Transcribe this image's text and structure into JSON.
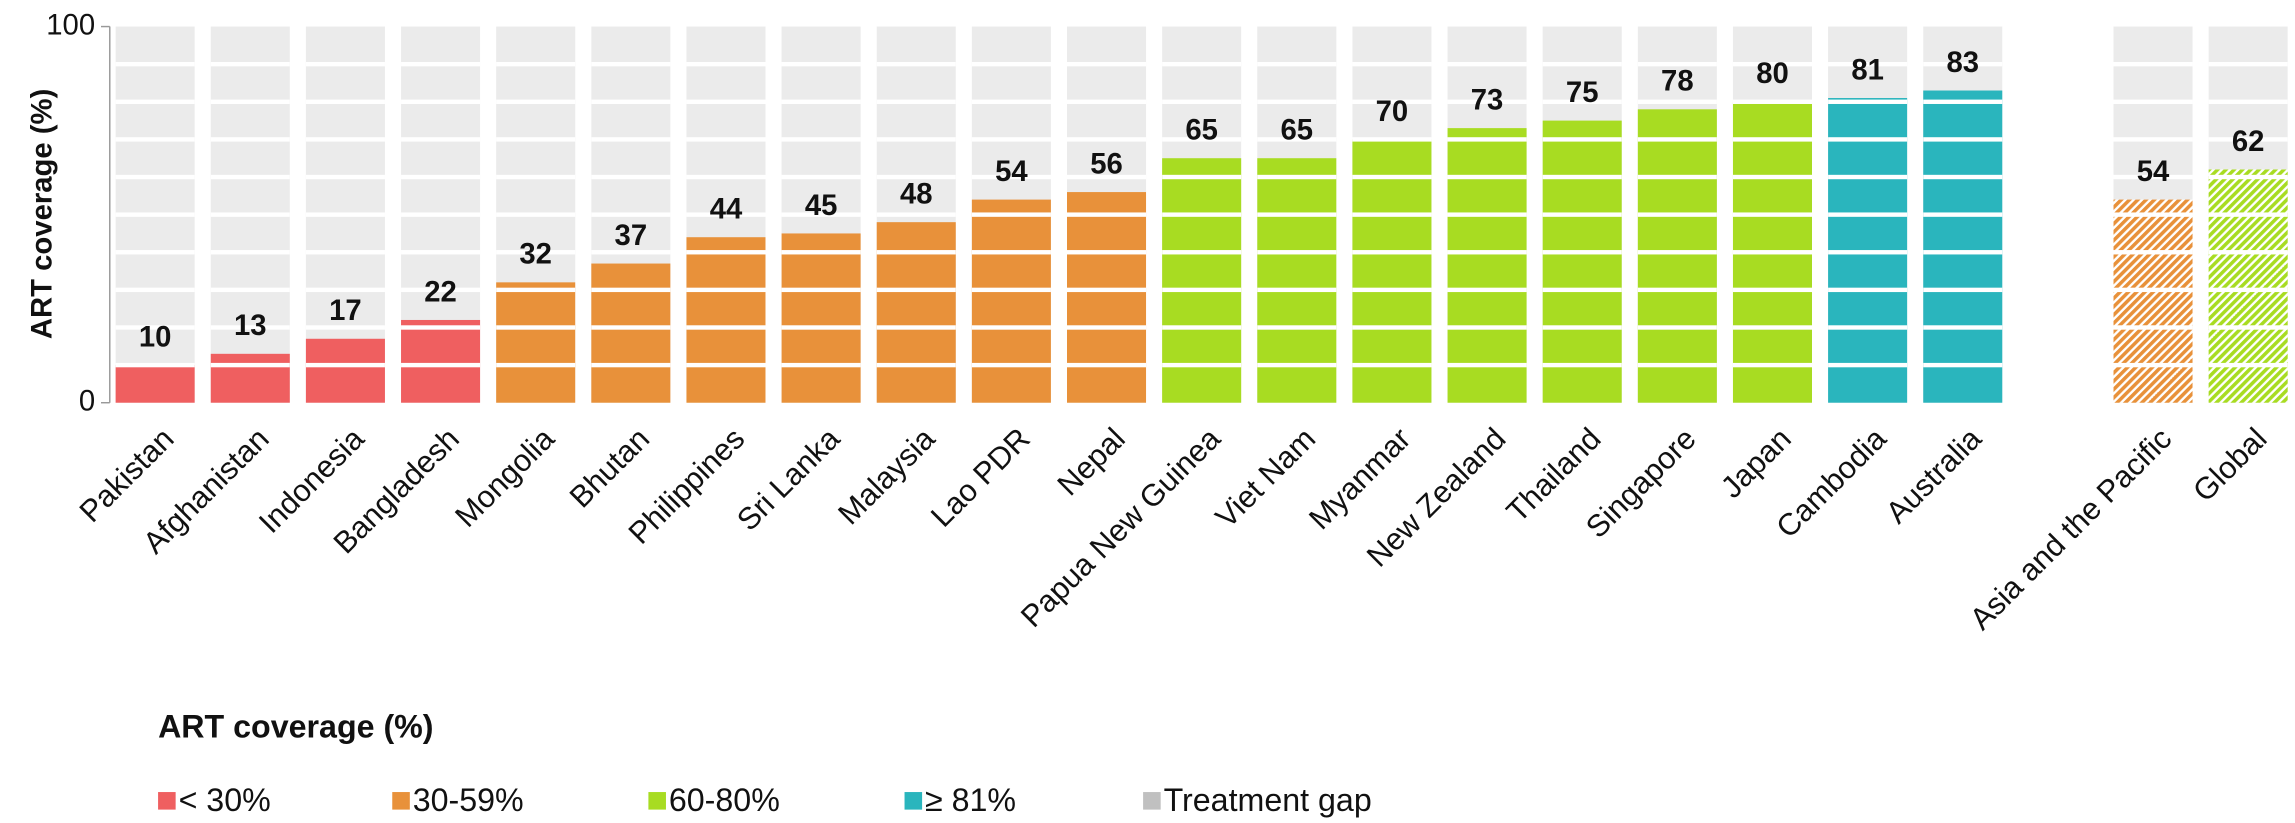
{
  "chart_data": {
    "type": "bar",
    "y_label": "ART coverage (%)",
    "categories": [
      "Pakistan",
      "Afghanistan",
      "Indonesia",
      "Bangladesh",
      "Mongolia",
      "Bhutan",
      "Philippines",
      "Sri Lanka",
      "Malaysia",
      "Lao PDR",
      "Nepal",
      "Papua New Guinea",
      "Viet Nam",
      "Myanmar",
      "New Zealand",
      "Thailand",
      "Singapore",
      "Japan",
      "Cambodia",
      "Australia",
      "Asia and the Pacific",
      "Global"
    ],
    "values": [
      10,
      13,
      17,
      22,
      32,
      37,
      44,
      45,
      48,
      54,
      56,
      65,
      65,
      70,
      73,
      75,
      78,
      80,
      81,
      83,
      54,
      62
    ],
    "colors": [
      "#ef5f60",
      "#ef5f60",
      "#ef5f60",
      "#ef5f60",
      "#e8913a",
      "#e8913a",
      "#e8913a",
      "#e8913a",
      "#e8913a",
      "#e8913a",
      "#e8913a",
      "#a8dc22",
      "#a8dc22",
      "#a8dc22",
      "#a8dc22",
      "#a8dc22",
      "#a8dc22",
      "#a8dc22",
      "#2ab5bd",
      "#2ab5bd",
      "#e8913a",
      "#a8dc22"
    ],
    "hatched": [
      false,
      false,
      false,
      false,
      false,
      false,
      false,
      false,
      false,
      false,
      false,
      false,
      false,
      false,
      false,
      false,
      false,
      false,
      false,
      false,
      true,
      true
    ],
    "gap_color": "#ebebeb",
    "ylim": [
      0,
      100
    ],
    "yticks": [
      0,
      100
    ],
    "legend_title": "ART coverage (%)",
    "legend": [
      {
        "name": "< 30%",
        "color": "#ef5f60"
      },
      {
        "name": "30-59%",
        "color": "#e8913a"
      },
      {
        "name": "60-80%",
        "color": "#a8dc22"
      },
      {
        "name": "≥ 81%",
        "color": "#2ab5bd"
      },
      {
        "name": "Treatment gap",
        "color": "#c0c0c0"
      }
    ]
  }
}
